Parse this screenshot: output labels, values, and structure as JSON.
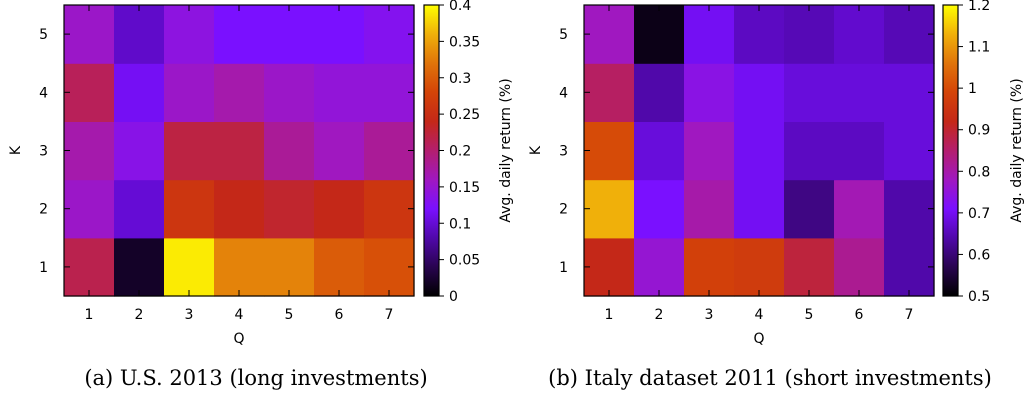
{
  "chart_data": [
    {
      "type": "heatmap",
      "panel": "a",
      "caption": "(a) U.S. 2013 (long investments)",
      "xlabel": "Q",
      "ylabel": "K",
      "x": [
        "1",
        "2",
        "3",
        "4",
        "5",
        "6",
        "7"
      ],
      "y": [
        "1",
        "2",
        "3",
        "4",
        "5"
      ],
      "values": [
        [
          0.215,
          0.02,
          0.39,
          0.33,
          0.33,
          0.3,
          0.29
        ],
        [
          0.155,
          0.1,
          0.26,
          0.24,
          0.23,
          0.24,
          0.26
        ],
        [
          0.17,
          0.135,
          0.22,
          0.22,
          0.18,
          0.16,
          0.18
        ],
        [
          0.21,
          0.115,
          0.155,
          0.17,
          0.155,
          0.145,
          0.145
        ],
        [
          0.155,
          0.095,
          0.14,
          0.12,
          0.12,
          0.12,
          0.13
        ]
      ],
      "colorbar": {
        "label": "Avg. daily return (%)",
        "min": 0,
        "max": 0.4,
        "ticks": [
          "0",
          "0.05",
          "0.1",
          "0.15",
          "0.2",
          "0.25",
          "0.3",
          "0.35",
          "0.4"
        ]
      }
    },
    {
      "type": "heatmap",
      "panel": "b",
      "caption": "(b) Italy dataset 2011 (short investments)",
      "xlabel": "Q",
      "ylabel": "K",
      "x": [
        "1",
        "2",
        "3",
        "4",
        "5",
        "6",
        "7"
      ],
      "y": [
        "1",
        "2",
        "3",
        "4",
        "5"
      ],
      "values": [
        [
          0.92,
          0.76,
          0.98,
          0.97,
          0.89,
          0.82,
          0.64
        ],
        [
          1.13,
          0.71,
          0.8,
          0.7,
          0.61,
          0.79,
          0.64
        ],
        [
          1.0,
          0.68,
          0.78,
          0.7,
          0.66,
          0.66,
          0.68
        ],
        [
          0.86,
          0.64,
          0.74,
          0.7,
          0.68,
          0.68,
          0.68
        ],
        [
          0.78,
          0.52,
          0.7,
          0.66,
          0.65,
          0.67,
          0.65
        ]
      ],
      "colorbar": {
        "label": "Avg. daily return (%)",
        "min": 0.5,
        "max": 1.2,
        "ticks": [
          "0.5",
          "0.6",
          "0.7",
          "0.8",
          "0.9",
          "1",
          "1.1",
          "1.2"
        ]
      }
    }
  ]
}
